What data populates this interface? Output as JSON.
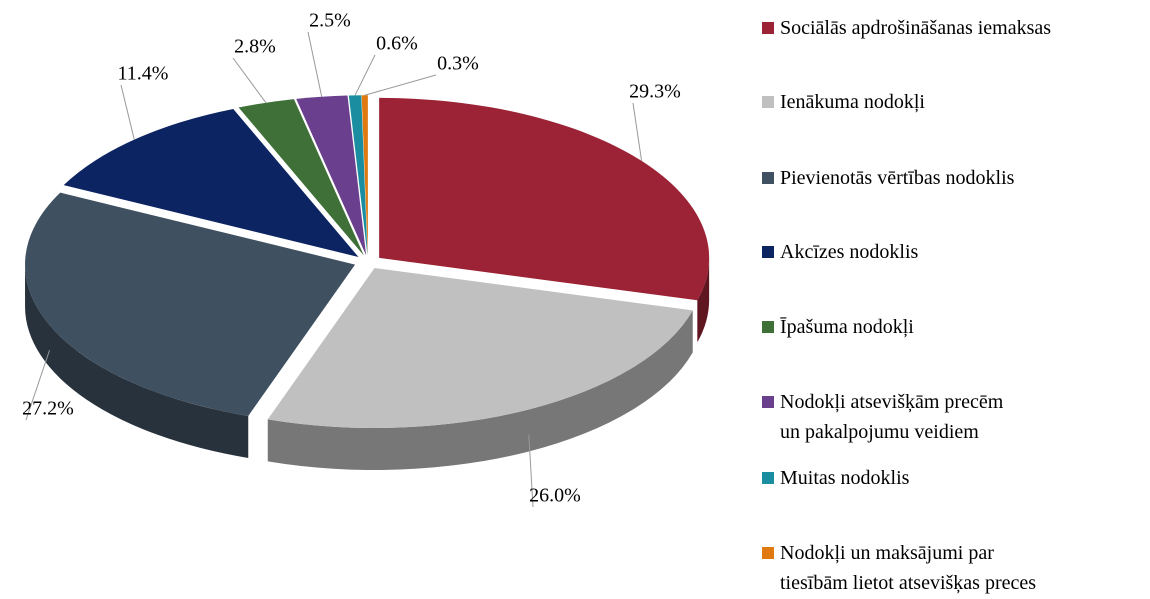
{
  "chart_data": {
    "type": "pie3d",
    "series": [
      {
        "name": "Sociālās apdrošināšanas iemaksas",
        "color": "#9b2335",
        "values": [
          29.3
        ],
        "value_labels": [
          "29.3%"
        ]
      },
      {
        "name": "Ienākuma nodokļi",
        "color": "#c0c0c0",
        "values": [
          26.0
        ],
        "value_labels": [
          "26.0%"
        ]
      },
      {
        "name": "Pievienotās vērtības nodoklis",
        "color": "#3f5061",
        "values": [
          27.2
        ],
        "value_labels": [
          "27.2%"
        ]
      },
      {
        "name": "Akcīzes nodoklis",
        "color": "#0d2463",
        "values": [
          11.4
        ],
        "value_labels": [
          "11.4%"
        ]
      },
      {
        "name": "Īpašuma nodokļi",
        "color": "#3f7038",
        "values": [
          2.8
        ],
        "value_labels": [
          "2.8%"
        ]
      },
      {
        "name": "Nodokļi atsevišķām precēm\nun  pakalpojumu veidiem",
        "color": "#6a3f8e",
        "values": [
          2.5
        ],
        "value_labels": [
          "2.5%"
        ]
      },
      {
        "name": "Muitas nodoklis",
        "color": "#1a8ea0",
        "values": [
          0.6
        ],
        "value_labels": [
          "0.6%"
        ]
      },
      {
        "name": "Nodokļi un maksājumi par\ntiesībām lietot atsevišķas preces",
        "color": "#e07a10",
        "values": [
          0.3
        ],
        "value_labels": [
          "0.3%"
        ]
      }
    ],
    "legend": "right"
  }
}
